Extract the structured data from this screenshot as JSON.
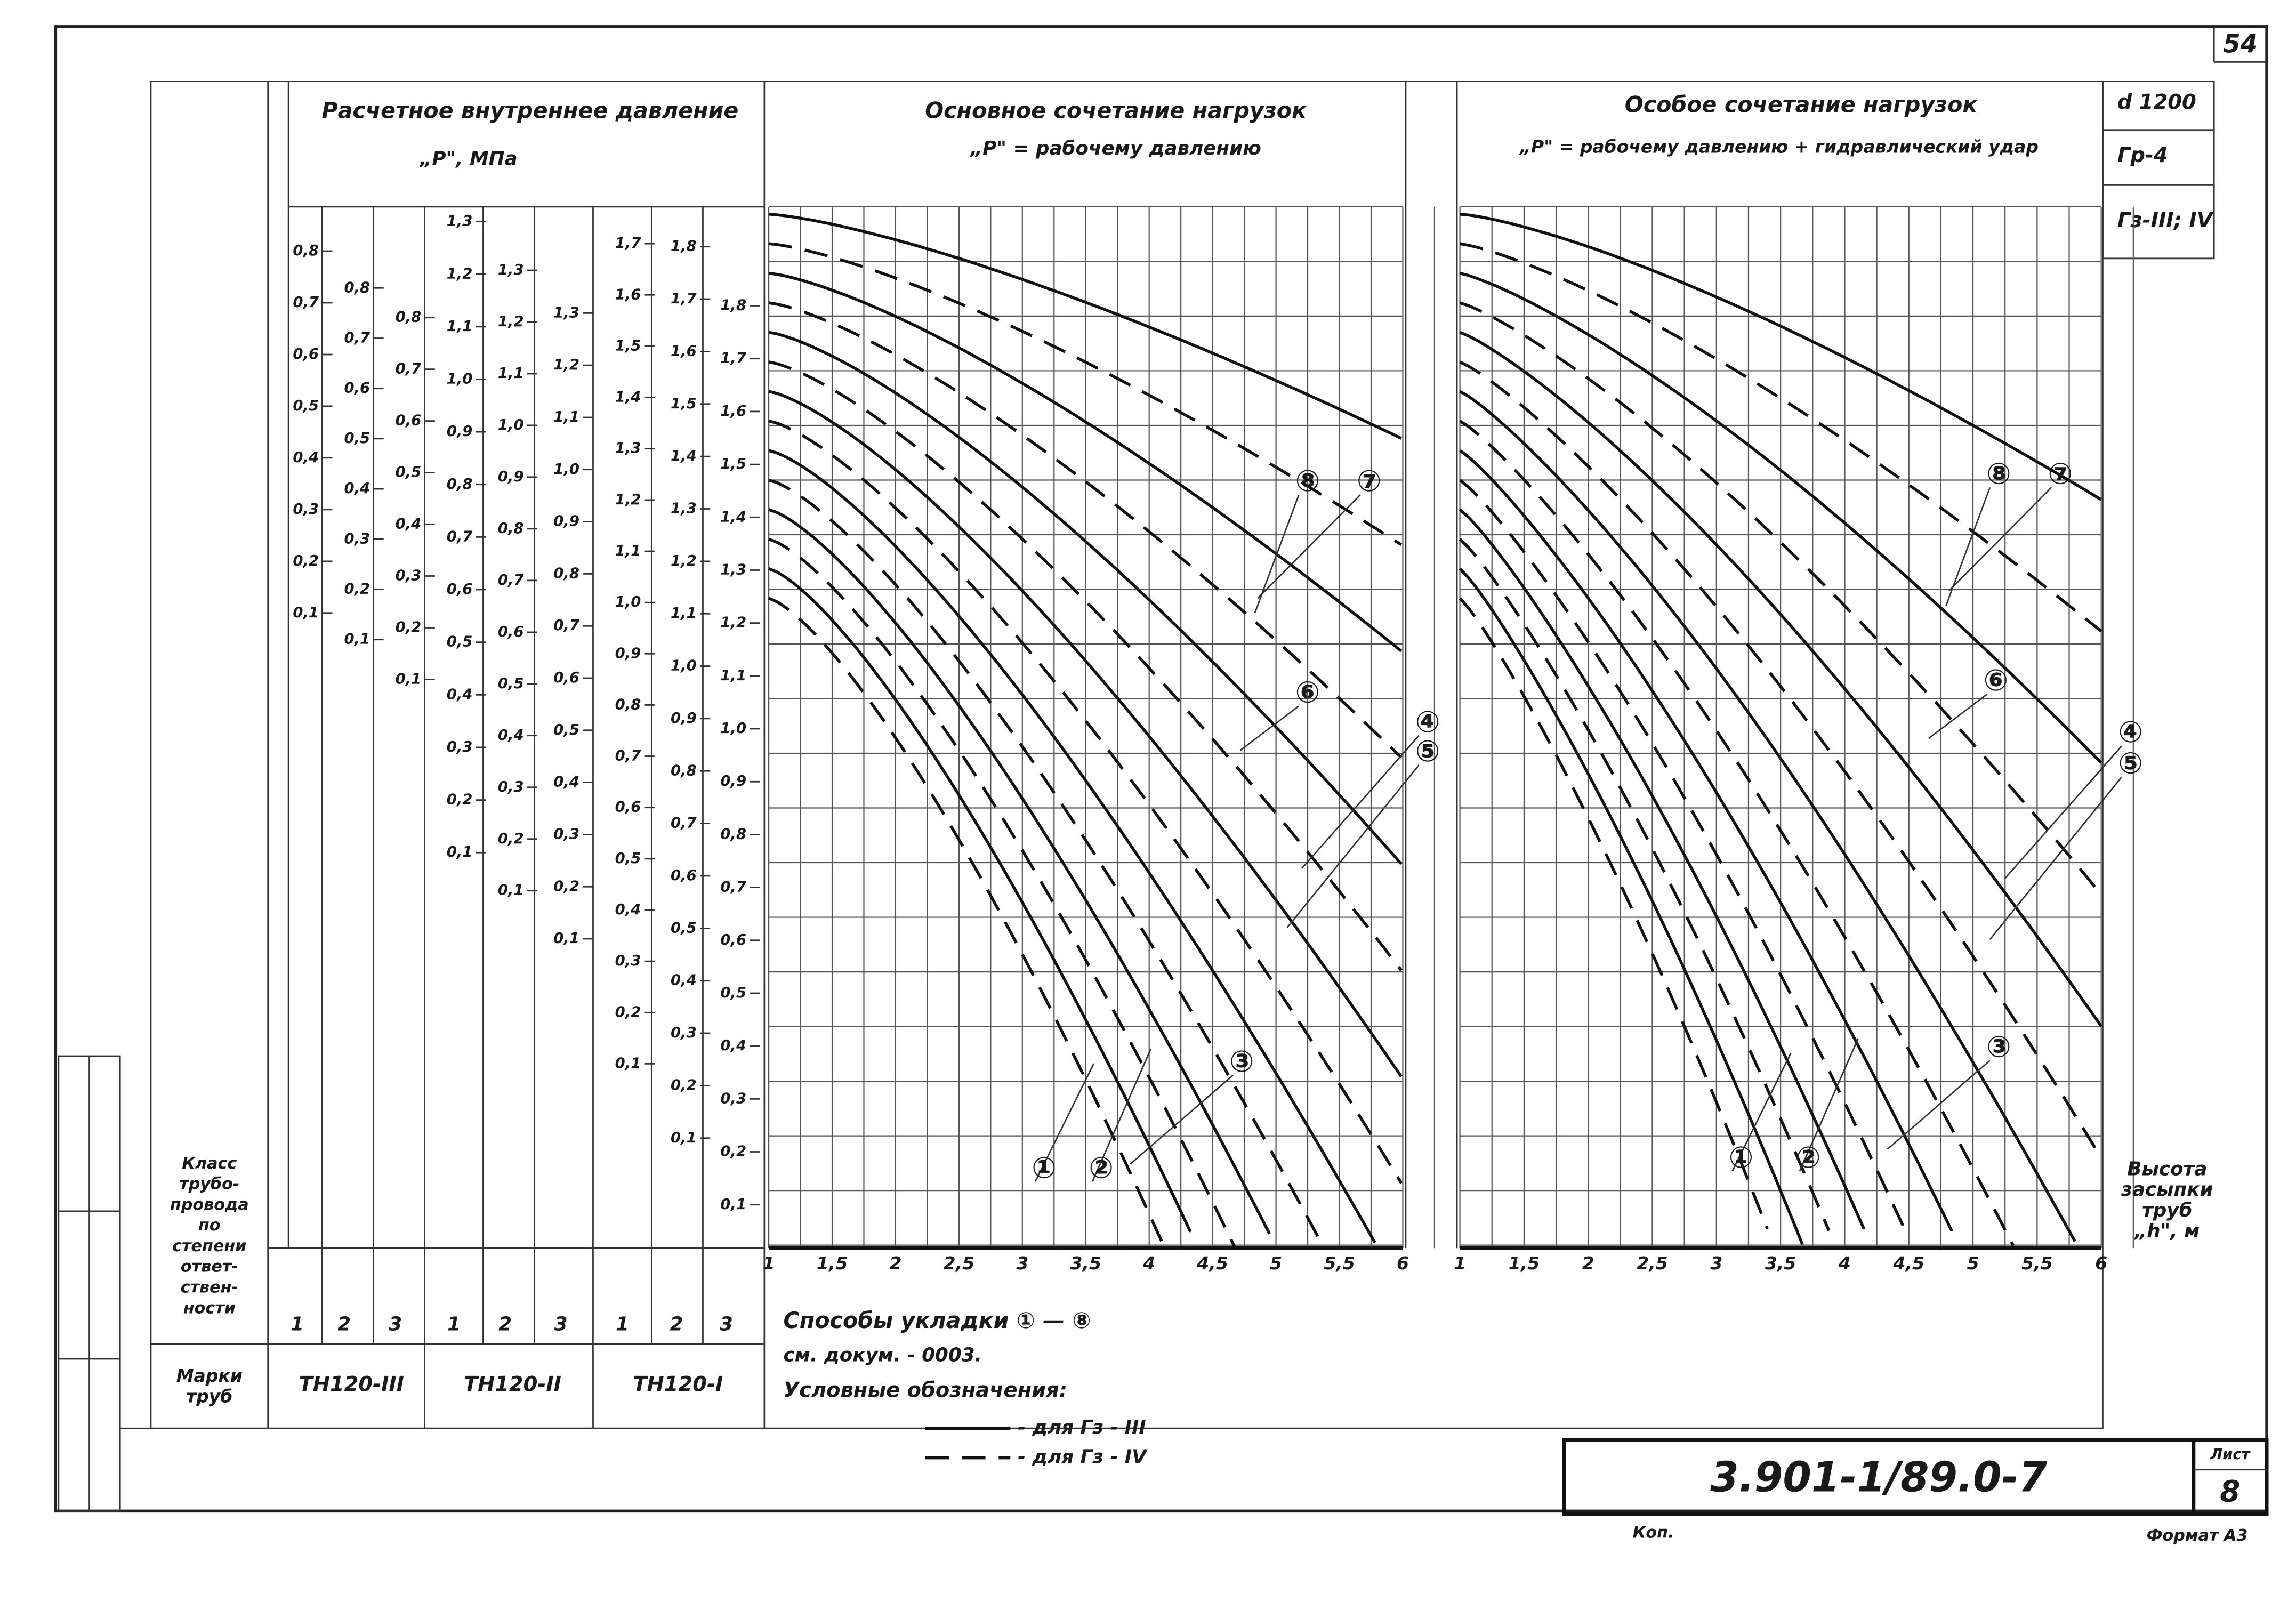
{
  "sheet_number": "54",
  "left_header": {
    "line1": "Расчетное внутреннее давление",
    "line2": "„Р\", МПа"
  },
  "chart_main": {
    "title": "Основное сочетание нагрузок",
    "subtitle": "„Р\" = рабочему давлению",
    "x_labels": [
      "1",
      "1,5",
      "2",
      "2,5",
      "3",
      "3,5",
      "4",
      "4,5",
      "5",
      "5,5",
      "6"
    ],
    "curve_labels": [
      "⑧",
      "⑦",
      "⑥",
      "④",
      "⑤",
      "③",
      "①",
      "②"
    ]
  },
  "chart_special": {
    "title": "Особое сочетание нагрузок",
    "subtitle": "„Р\" = рабочему давлению + гидравлический удар",
    "x_labels": [
      "1",
      "1,5",
      "2",
      "2,5",
      "3",
      "3,5",
      "4",
      "4,5",
      "5",
      "5,5",
      "6"
    ],
    "curve_labels": [
      "⑧",
      "⑦",
      "⑥",
      "④",
      "⑤",
      "③",
      "①",
      "②"
    ]
  },
  "x_axis_title": [
    "Высота",
    "засыпки",
    "труб",
    "„h\", м"
  ],
  "stamp": [
    "d 1200",
    "Гр-4",
    "Гз-III; IV"
  ],
  "scales": [
    {
      "mark": "ТН120-III",
      "classes": [
        "1",
        "2",
        "3"
      ],
      "columns": [
        [
          "0,8",
          "0,7",
          "0,6",
          "0,5",
          "0,4",
          "0,3",
          "0,2",
          "0,1"
        ],
        [
          "0,8",
          "0,7",
          "0,6",
          "0,5",
          "0,4",
          "0,3",
          "0,2",
          "0,1"
        ],
        [
          "0,8",
          "0,7",
          "0,6",
          "0,5",
          "0,4",
          "0,3",
          "0,2",
          "0,1"
        ]
      ]
    },
    {
      "mark": "ТН120-II",
      "classes": [
        "1",
        "2",
        "3"
      ],
      "columns": [
        [
          "1,3",
          "1,2",
          "1,1",
          "1,0",
          "0,9",
          "0,8",
          "0,7",
          "0,6",
          "0,5",
          "0,4",
          "0,3",
          "0,2",
          "0,1"
        ],
        [
          "1,3",
          "1,2",
          "1,1",
          "1,0",
          "0,9",
          "0,8",
          "0,7",
          "0,6",
          "0,5",
          "0,4",
          "0,3",
          "0,2",
          "0,1"
        ],
        [
          "1,3",
          "1,2",
          "1,1",
          "1,0",
          "0,9",
          "0,8",
          "0,7",
          "0,6",
          "0,5",
          "0,4",
          "0,3",
          "0,2",
          "0,1"
        ]
      ]
    },
    {
      "mark": "ТН120-I",
      "classes": [
        "1",
        "2",
        "3"
      ],
      "columns": [
        [
          "1,7",
          "1,6",
          "1,5",
          "1,4",
          "1,3",
          "1,2",
          "1,1",
          "1,0",
          "0,9",
          "0,8",
          "0,7",
          "0,6",
          "0,5",
          "0,4",
          "0,3",
          "0,2",
          "0,1"
        ],
        [
          "1,8",
          "1,7",
          "1,6",
          "1,5",
          "1,4",
          "1,3",
          "1,2",
          "1,1",
          "1,0",
          "0,9",
          "0,8",
          "0,7",
          "0,6",
          "0,5",
          "0,4",
          "0,3",
          "0,2",
          "0,1"
        ],
        [
          "1,8",
          "1,7",
          "1,6",
          "1,5",
          "1,4",
          "1,3",
          "1,2",
          "1,1",
          "1,0",
          "0,9",
          "0,8",
          "0,7",
          "0,6",
          "0,5",
          "0,4",
          "0,3",
          "0,2",
          "0,1"
        ]
      ]
    }
  ],
  "row_labels": {
    "class": [
      "Класс",
      "трубо-",
      "провода",
      "по",
      "степени",
      "ответ-",
      "ствен-",
      "ности"
    ],
    "mark": [
      "Марки",
      "труб"
    ]
  },
  "notes": {
    "methods": "Способы укладки ① — ⑧",
    "ref": "см. докум. - 0003.",
    "legend_title": "Условные обозначения:",
    "legend": [
      "- для Гз - III",
      "- для Гз - IV"
    ]
  },
  "title_block": {
    "code": "3.901-1/89.0-7",
    "sheet_label": "Лист",
    "sheet": "8",
    "copied": "Коп.",
    "format": "Формат А3"
  }
}
